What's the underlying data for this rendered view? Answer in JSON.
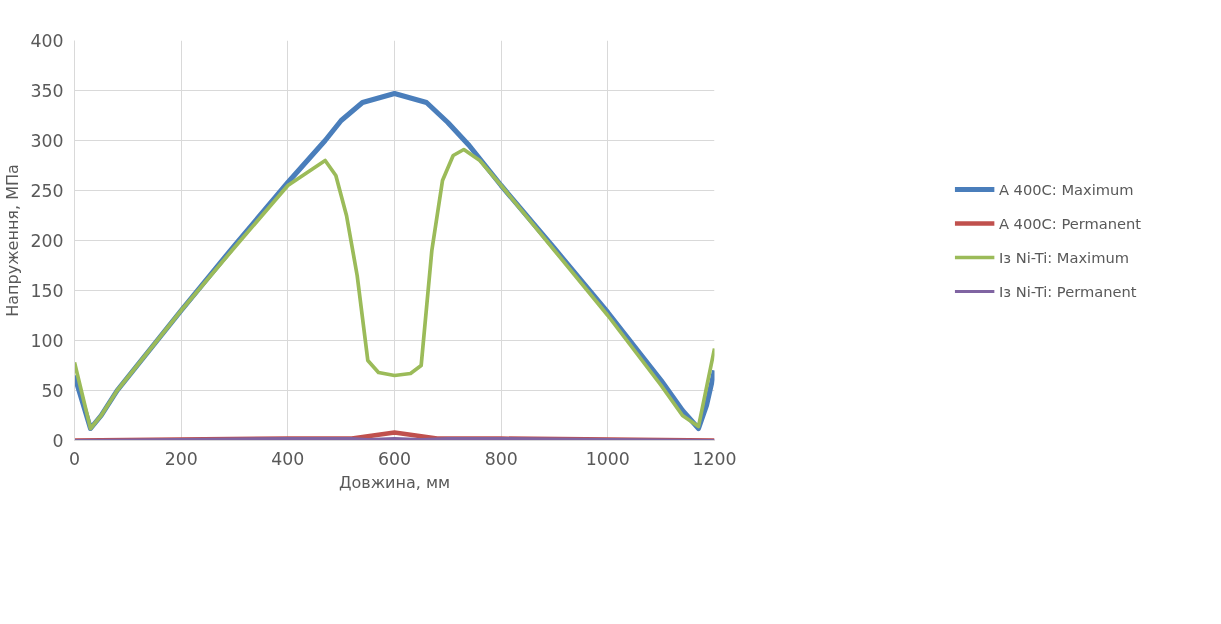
{
  "chart_data": {
    "type": "line",
    "xlabel": "Довжина, мм",
    "ylabel": "Напруження, МПа",
    "xlim": [
      0,
      1200
    ],
    "xticks": [
      0,
      200,
      400,
      600,
      800,
      1000,
      1200
    ],
    "ylim": [
      0,
      400
    ],
    "yticks": [
      0,
      50,
      100,
      150,
      200,
      250,
      300,
      350,
      400
    ],
    "grid": true,
    "legend": "right",
    "marker": "none",
    "line_style": "solid",
    "series": [
      {
        "name": "A 400C: Maximum",
        "color": "#4a7ebb",
        "x": [
          0,
          30,
          50,
          80,
          200,
          300,
          400,
          470,
          500,
          540,
          600,
          660,
          700,
          740,
          800,
          900,
          1000,
          1100,
          1140,
          1170,
          1185,
          1200
        ],
        "values": [
          65,
          12,
          25,
          50,
          130,
          195,
          258,
          300,
          320,
          338,
          347,
          338,
          318,
          295,
          255,
          192,
          128,
          60,
          30,
          12,
          35,
          70
        ]
      },
      {
        "name": "A 400C: Permanent",
        "color": "#c0504d",
        "x": [
          0,
          400,
          520,
          560,
          600,
          640,
          680,
          800,
          1200
        ],
        "values": [
          0,
          2,
          2,
          5,
          8,
          5,
          2,
          2,
          0
        ]
      },
      {
        "name": "Із Ni-Ti: Maximum",
        "color": "#9bbb59",
        "x": [
          0,
          30,
          50,
          80,
          200,
          300,
          400,
          470,
          490,
          510,
          530,
          550,
          570,
          600,
          630,
          650,
          670,
          690,
          710,
          730,
          760,
          800,
          900,
          1000,
          1100,
          1140,
          1170,
          1200
        ],
        "values": [
          78,
          12,
          25,
          50,
          130,
          193,
          255,
          280,
          265,
          225,
          165,
          80,
          68,
          65,
          67,
          75,
          190,
          260,
          285,
          291,
          280,
          255,
          190,
          125,
          55,
          25,
          14,
          92
        ]
      },
      {
        "name": "Із Ni-Ti: Permanent",
        "color": "#8064a2",
        "x": [
          0,
          400,
          520,
          550,
          600,
          650,
          700,
          800,
          1200
        ],
        "values": [
          0,
          2,
          2,
          1,
          2,
          1,
          2,
          2,
          0
        ]
      }
    ]
  }
}
